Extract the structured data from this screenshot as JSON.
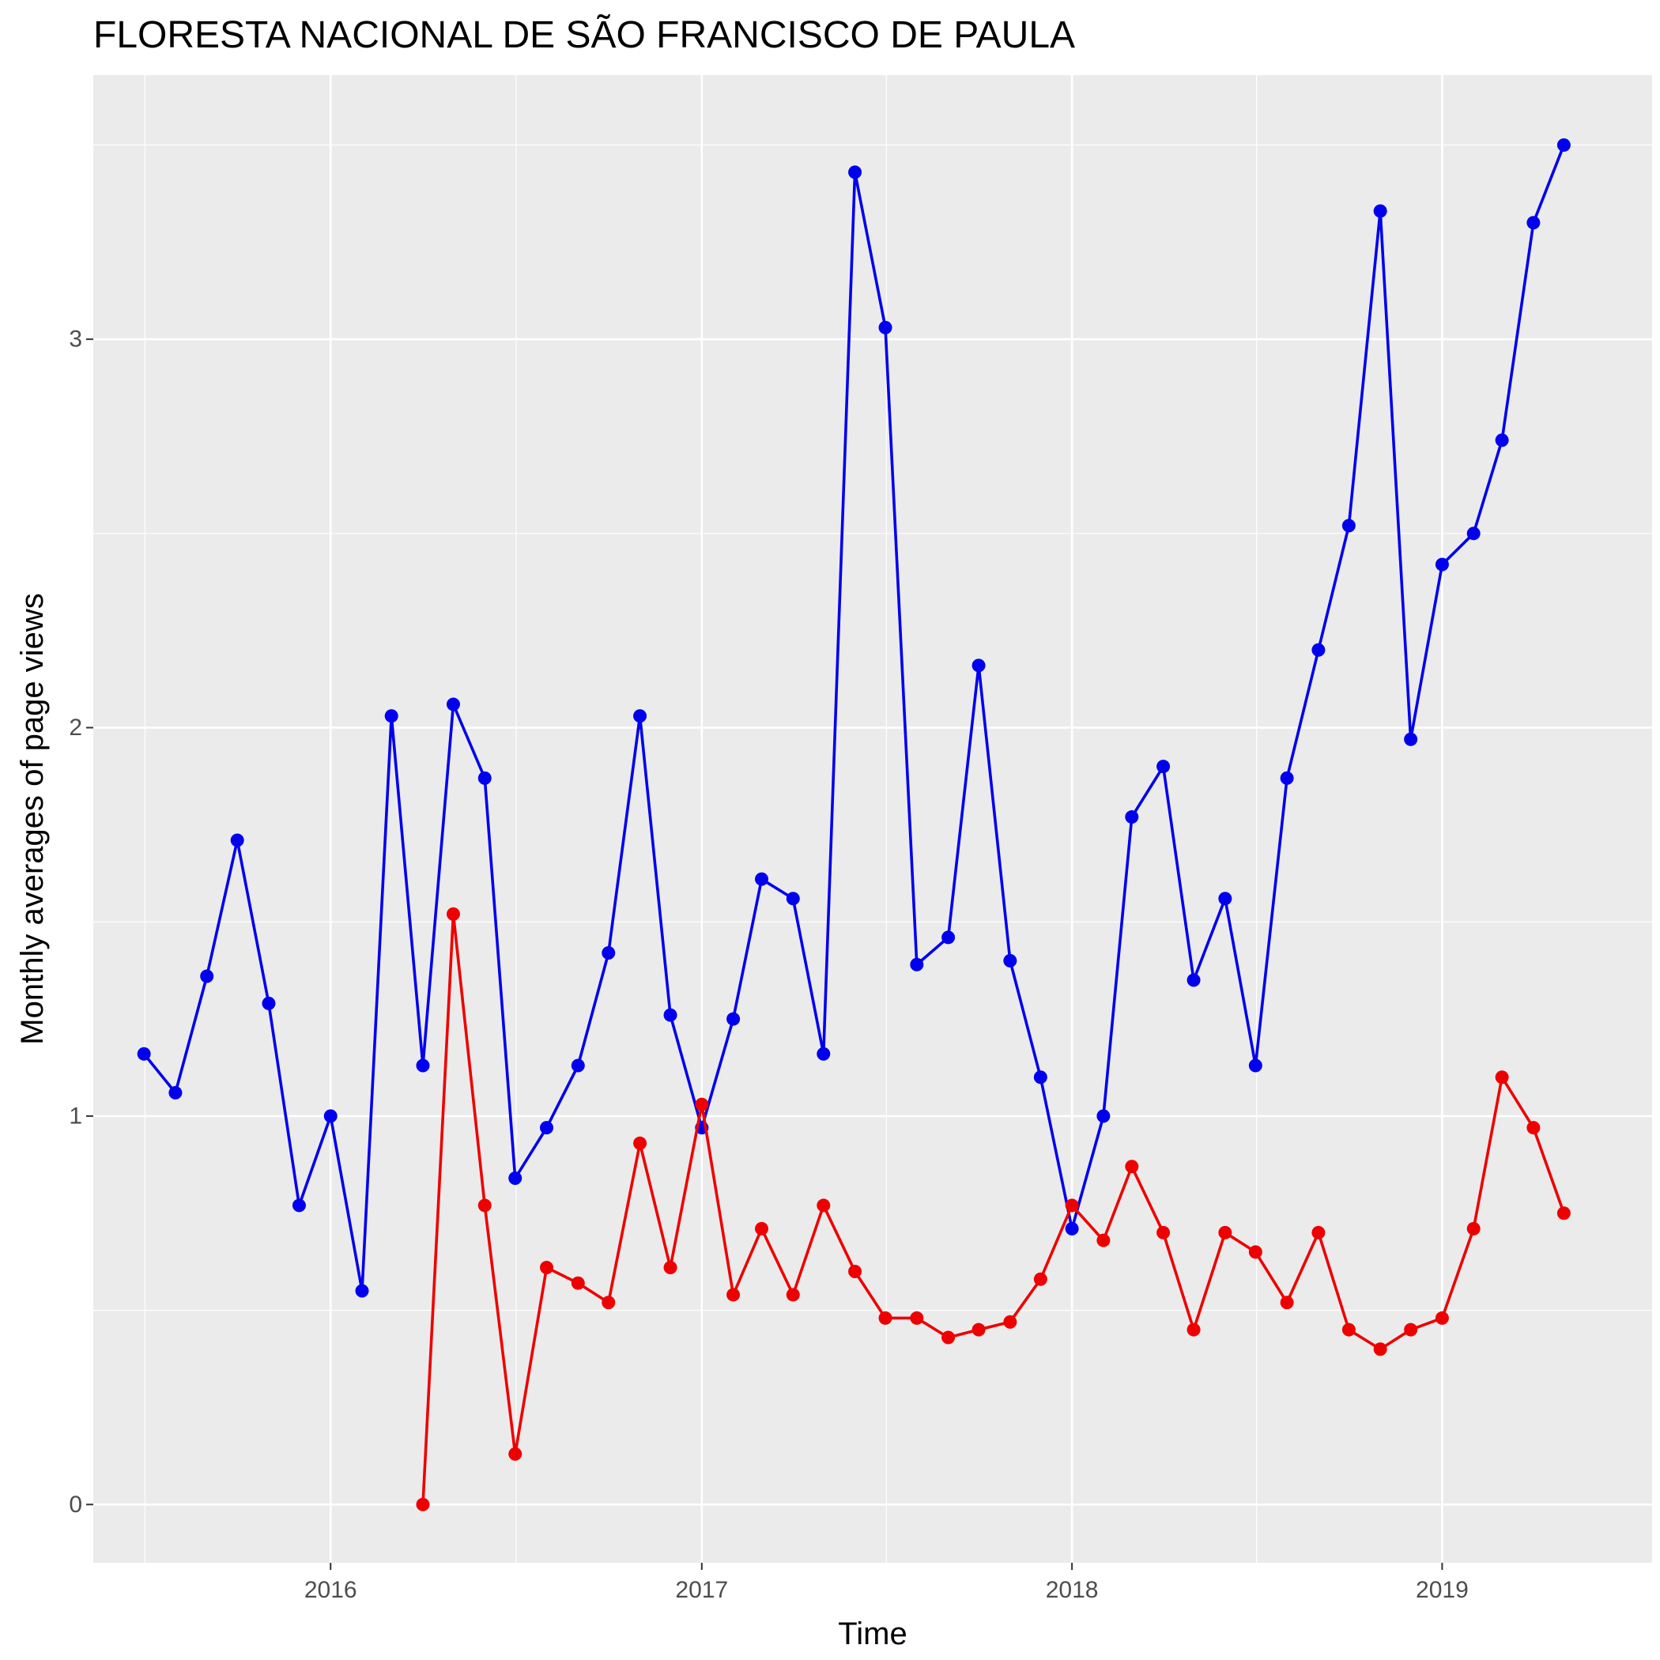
{
  "chart_data": {
    "type": "line",
    "title": "FLORESTA NACIONAL DE SÃO FRANCISCO DE PAULA",
    "xlabel": "Time",
    "ylabel": "Monthly averages of page views",
    "x_ticks": [
      "2016",
      "2017",
      "2018",
      "2019"
    ],
    "y_ticks": [
      "0",
      "1",
      "2",
      "3"
    ],
    "xlim": [
      "2015-05-12",
      "2019-07-27"
    ],
    "ylim": [
      -0.15,
      3.68
    ],
    "grid": true,
    "legend": "none",
    "background": "#EBEBEB",
    "series": [
      {
        "color": "#0000EE",
        "points": [
          [
            "2015-07-01",
            1.16
          ],
          [
            "2015-08-01",
            1.06
          ],
          [
            "2015-09-01",
            1.36
          ],
          [
            "2015-10-01",
            1.71
          ],
          [
            "2015-11-01",
            1.29
          ],
          [
            "2015-12-01",
            0.77
          ],
          [
            "2016-01-01",
            1.0
          ],
          [
            "2016-02-01",
            0.55
          ],
          [
            "2016-03-01",
            2.03
          ],
          [
            "2016-04-01",
            1.13
          ],
          [
            "2016-05-01",
            2.06
          ],
          [
            "2016-06-01",
            1.87
          ],
          [
            "2016-07-01",
            0.84
          ],
          [
            "2016-08-01",
            0.97
          ],
          [
            "2016-09-01",
            1.13
          ],
          [
            "2016-10-01",
            1.42
          ],
          [
            "2016-11-01",
            2.03
          ],
          [
            "2016-12-01",
            1.26
          ],
          [
            "2017-01-01",
            0.97
          ],
          [
            "2017-02-01",
            1.25
          ],
          [
            "2017-03-01",
            1.61
          ],
          [
            "2017-04-01",
            1.56
          ],
          [
            "2017-05-01",
            1.16
          ],
          [
            "2017-06-01",
            3.43
          ],
          [
            "2017-07-01",
            3.03
          ],
          [
            "2017-08-01",
            1.39
          ],
          [
            "2017-09-01",
            1.46
          ],
          [
            "2017-10-01",
            2.16
          ],
          [
            "2017-11-01",
            1.4
          ],
          [
            "2017-12-01",
            1.1
          ],
          [
            "2018-01-01",
            0.71
          ],
          [
            "2018-02-01",
            1.0
          ],
          [
            "2018-03-01",
            1.77
          ],
          [
            "2018-04-01",
            1.9
          ],
          [
            "2018-05-01",
            1.35
          ],
          [
            "2018-06-01",
            1.56
          ],
          [
            "2018-07-01",
            1.13
          ],
          [
            "2018-08-01",
            1.87
          ],
          [
            "2018-09-01",
            2.2
          ],
          [
            "2018-10-01",
            2.52
          ],
          [
            "2018-11-01",
            3.33
          ],
          [
            "2018-12-01",
            1.97
          ],
          [
            "2019-01-01",
            2.42
          ],
          [
            "2019-02-01",
            2.5
          ],
          [
            "2019-03-01",
            2.74
          ],
          [
            "2019-04-01",
            3.3
          ],
          [
            "2019-05-01",
            3.5
          ]
        ]
      },
      {
        "color": "#EE0000",
        "points": [
          [
            "2016-04-01",
            0.0
          ],
          [
            "2016-05-01",
            1.52
          ],
          [
            "2016-06-01",
            0.77
          ],
          [
            "2016-07-01",
            0.13
          ],
          [
            "2016-08-01",
            0.61
          ],
          [
            "2016-09-01",
            0.57
          ],
          [
            "2016-10-01",
            0.52
          ],
          [
            "2016-11-01",
            0.93
          ],
          [
            "2016-12-01",
            0.61
          ],
          [
            "2017-01-01",
            1.03
          ],
          [
            "2017-02-01",
            0.54
          ],
          [
            "2017-03-01",
            0.71
          ],
          [
            "2017-04-01",
            0.54
          ],
          [
            "2017-05-01",
            0.77
          ],
          [
            "2017-06-01",
            0.6
          ],
          [
            "2017-07-01",
            0.48
          ],
          [
            "2017-08-01",
            0.48
          ],
          [
            "2017-09-01",
            0.43
          ],
          [
            "2017-10-01",
            0.45
          ],
          [
            "2017-11-01",
            0.47
          ],
          [
            "2017-12-01",
            0.58
          ],
          [
            "2018-01-01",
            0.77
          ],
          [
            "2018-02-01",
            0.68
          ],
          [
            "2018-03-01",
            0.87
          ],
          [
            "2018-04-01",
            0.7
          ],
          [
            "2018-05-01",
            0.45
          ],
          [
            "2018-06-01",
            0.7
          ],
          [
            "2018-07-01",
            0.65
          ],
          [
            "2018-08-01",
            0.52
          ],
          [
            "2018-09-01",
            0.7
          ],
          [
            "2018-10-01",
            0.45
          ],
          [
            "2018-11-01",
            0.4
          ],
          [
            "2018-12-01",
            0.45
          ],
          [
            "2019-01-01",
            0.48
          ],
          [
            "2019-02-01",
            0.71
          ],
          [
            "2019-03-01",
            1.1
          ],
          [
            "2019-04-01",
            0.97
          ],
          [
            "2019-05-01",
            0.75
          ]
        ]
      }
    ]
  }
}
